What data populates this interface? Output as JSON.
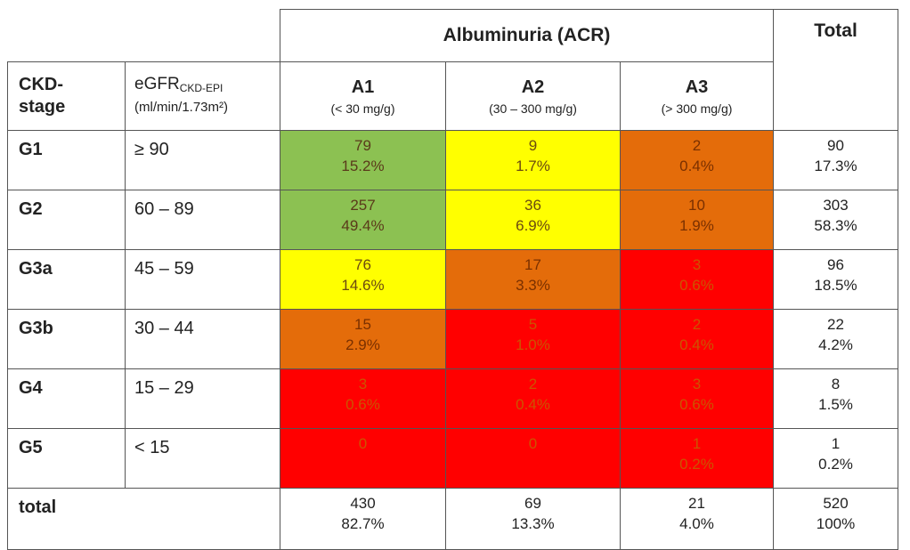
{
  "header": {
    "albuminuria_label": "Albuminuria (ACR)",
    "total_label": "Total",
    "stage_label_line1": "CKD-",
    "stage_label_line2": "stage",
    "egfr_label": "eGFR",
    "egfr_sub": "CKD-EPI",
    "egfr_units": "(ml/min/1.73m²)",
    "categories": [
      {
        "name": "A1",
        "range": "(< 30 mg/g)"
      },
      {
        "name": "A2",
        "range": "(30 – 300 mg/g)"
      },
      {
        "name": "A3",
        "range": "(> 300 mg/g)"
      }
    ]
  },
  "rows": [
    {
      "stage": "G1",
      "egfr": "≥ 90",
      "cells": [
        {
          "n": "79",
          "p": "15.2%",
          "color": "#8cc152"
        },
        {
          "n": "9",
          "p": "1.7%",
          "color": "#ffff00"
        },
        {
          "n": "2",
          "p": "0.4%",
          "color": "#e46c0a"
        }
      ],
      "total": {
        "n": "90",
        "p": "17.3%"
      }
    },
    {
      "stage": "G2",
      "egfr": "60 – 89",
      "cells": [
        {
          "n": "257",
          "p": "49.4%",
          "color": "#8cc152"
        },
        {
          "n": "36",
          "p": "6.9%",
          "color": "#ffff00"
        },
        {
          "n": "10",
          "p": "1.9%",
          "color": "#e46c0a"
        }
      ],
      "total": {
        "n": "303",
        "p": "58.3%"
      }
    },
    {
      "stage": "G3a",
      "egfr": "45 – 59",
      "cells": [
        {
          "n": "76",
          "p": "14.6%",
          "color": "#ffff00"
        },
        {
          "n": "17",
          "p": "3.3%",
          "color": "#e46c0a"
        },
        {
          "n": "3",
          "p": "0.6%",
          "color": "#ff0000"
        }
      ],
      "total": {
        "n": "96",
        "p": "18.5%"
      }
    },
    {
      "stage": "G3b",
      "egfr": "30 – 44",
      "cells": [
        {
          "n": "15",
          "p": "2.9%",
          "color": "#e46c0a"
        },
        {
          "n": "5",
          "p": "1.0%",
          "color": "#ff0000"
        },
        {
          "n": "2",
          "p": "0.4%",
          "color": "#ff0000"
        }
      ],
      "total": {
        "n": "22",
        "p": "4.2%"
      }
    },
    {
      "stage": "G4",
      "egfr": "15 – 29",
      "cells": [
        {
          "n": "3",
          "p": "0.6%",
          "color": "#ff0000"
        },
        {
          "n": "2",
          "p": "0.4%",
          "color": "#ff0000"
        },
        {
          "n": "3",
          "p": "0.6%",
          "color": "#ff0000"
        }
      ],
      "total": {
        "n": "8",
        "p": "1.5%"
      }
    },
    {
      "stage": "G5",
      "egfr": "< 15",
      "cells": [
        {
          "n": "0",
          "p": "",
          "color": "#ff0000"
        },
        {
          "n": "0",
          "p": "",
          "color": "#ff0000"
        },
        {
          "n": "1",
          "p": "0.2%",
          "color": "#ff0000"
        }
      ],
      "total": {
        "n": "1",
        "p": "0.2%"
      }
    }
  ],
  "totals": {
    "label": "total",
    "cells": [
      {
        "n": "430",
        "p": "82.7%"
      },
      {
        "n": "69",
        "p": "13.3%"
      },
      {
        "n": "21",
        "p": "4.0%"
      }
    ],
    "grand": {
      "n": "520",
      "p": "100%"
    }
  }
}
